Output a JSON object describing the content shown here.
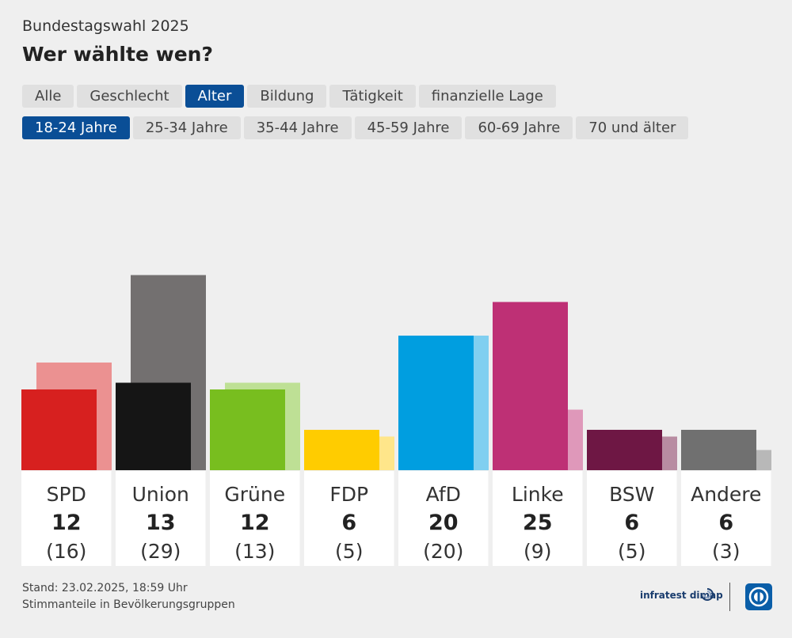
{
  "header": {
    "supertitle": "Bundestagswahl 2025",
    "title": "Wer wählte wen?"
  },
  "tabs_row1": [
    {
      "label": "Alle",
      "active": false
    },
    {
      "label": "Geschlecht",
      "active": false
    },
    {
      "label": "Alter",
      "active": true
    },
    {
      "label": "Bildung",
      "active": false
    },
    {
      "label": "Tätigkeit",
      "active": false
    },
    {
      "label": "finanzielle Lage",
      "active": false
    }
  ],
  "tabs_row2": [
    {
      "label": "18-24 Jahre",
      "active": true
    },
    {
      "label": "25-34 Jahre",
      "active": false
    },
    {
      "label": "35-44 Jahre",
      "active": false
    },
    {
      "label": "45-59 Jahre",
      "active": false
    },
    {
      "label": "60-69 Jahre",
      "active": false
    },
    {
      "label": "70 und älter",
      "active": false
    }
  ],
  "chart_data": {
    "type": "bar",
    "categories": [
      "SPD",
      "Union",
      "Grüne",
      "FDP",
      "AfD",
      "Linke",
      "BSW",
      "Andere"
    ],
    "series": [
      {
        "values": [
          12,
          13,
          12,
          6,
          20,
          25,
          6,
          6
        ]
      },
      {
        "values": [
          16,
          29,
          13,
          5,
          20,
          9,
          5,
          3
        ]
      }
    ],
    "value_labels": [
      "12",
      "13",
      "12",
      "6",
      "20",
      "25",
      "6",
      "6"
    ],
    "previous_labels": [
      "(16)",
      "(29)",
      "(13)",
      "(5)",
      "(20)",
      "(9)",
      "(5)",
      "(3)"
    ],
    "colors": [
      "#d7201f",
      "#151515",
      "#78be1f",
      "#ffcc00",
      "#009ee0",
      "#be3075",
      "#6e1744",
      "#707070"
    ],
    "previous_colors": [
      "#eb9191",
      "#737070",
      "#bee095",
      "#ffe68a",
      "#80cff0",
      "#df98ba",
      "#b88ca2",
      "#b8b8b8"
    ],
    "ylim": [
      0,
      30
    ],
    "grid": false,
    "legend": "none"
  },
  "footer": {
    "line1": "Stand: 23.02.2025, 18:59 Uhr",
    "line2": "Stimmanteile in Bevölkerungsgruppen",
    "brand": "infratest dimap"
  }
}
